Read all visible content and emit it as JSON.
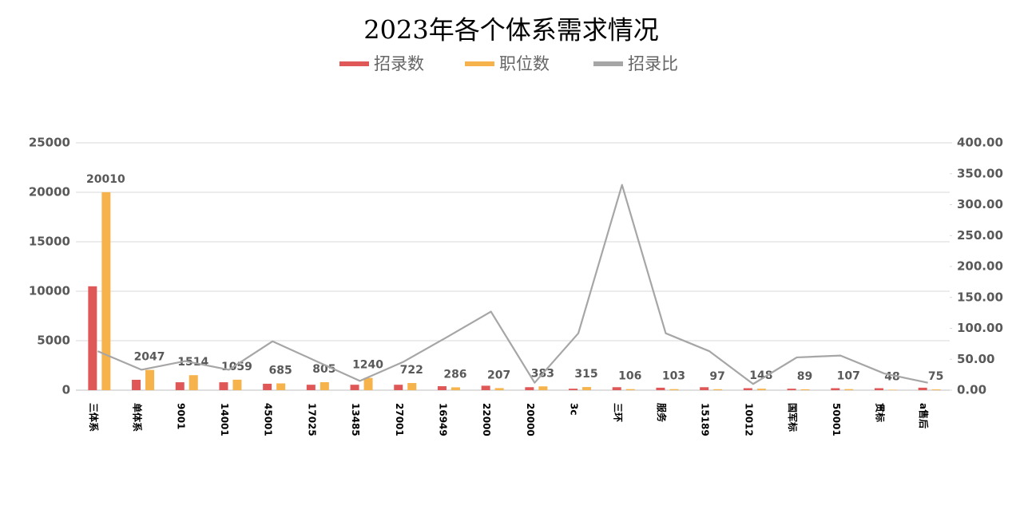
{
  "chart_data": {
    "type": "bar",
    "title": "2023年各个体系需求情况",
    "categories": [
      "三体系",
      "单体系",
      "9001",
      "14001",
      "45001",
      "17025",
      "13485",
      "27001",
      "16949",
      "22000",
      "20000",
      "3c",
      "三环",
      "服务",
      "15189",
      "10012",
      "国军标",
      "50001",
      "贯标",
      "a售后"
    ],
    "series": [
      {
        "name": "招录数",
        "color": "#e05757",
        "values": [
          10500,
          1050,
          800,
          800,
          650,
          550,
          550,
          550,
          400,
          450,
          300,
          150,
          300,
          250,
          300,
          200,
          150,
          200,
          200,
          250
        ]
      },
      {
        "name": "职位数",
        "color": "#f6b34b",
        "values": [
          20010,
          2047,
          1514,
          1059,
          685,
          805,
          1240,
          722,
          286,
          207,
          383,
          315,
          106,
          103,
          97,
          148,
          89,
          107,
          48,
          75
        ]
      },
      {
        "name": "招录比",
        "color": "#a6a6a6",
        "type": "line",
        "axis": "y2",
        "values": [
          63,
          33,
          47,
          33,
          79,
          47,
          15,
          46,
          86,
          127,
          12,
          92,
          332,
          92,
          63,
          10,
          53,
          56,
          27,
          12
        ]
      }
    ],
    "ylim": [
      0,
      25000
    ],
    "yticks": [
      0,
      5000,
      10000,
      15000,
      20000,
      25000
    ],
    "y2lim": [
      0,
      400
    ],
    "y2ticks": [
      {
        "value": 0,
        "label": "0.00"
      },
      {
        "value": 50,
        "label": "50.00"
      },
      {
        "value": 100,
        "label": "100.00"
      },
      {
        "value": 150,
        "label": "150.00"
      },
      {
        "value": 200,
        "label": "200.00"
      },
      {
        "value": 250,
        "label": "250.00"
      },
      {
        "value": 300,
        "label": "300.00"
      },
      {
        "value": 350,
        "label": "350.00"
      },
      {
        "value": 400,
        "label": "400.00"
      }
    ],
    "grid": true,
    "legend": "top"
  }
}
